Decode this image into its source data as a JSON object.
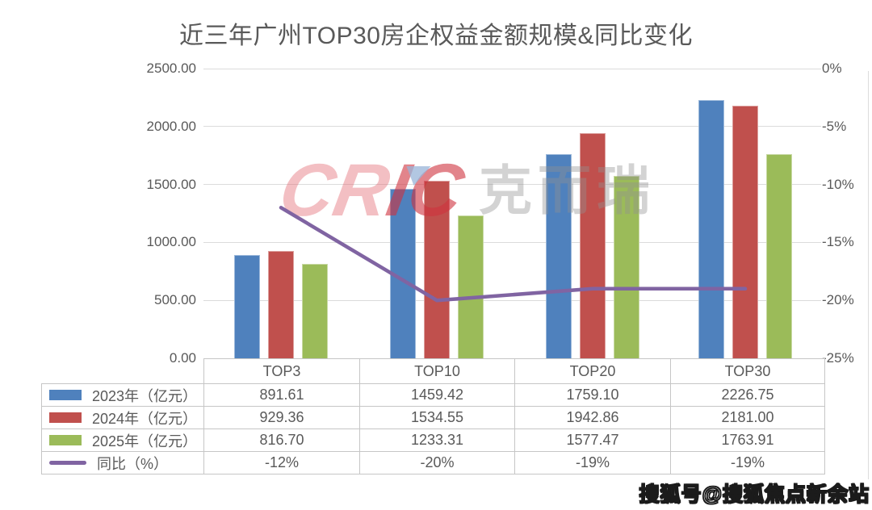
{
  "title": "近三年广州TOP30房企权益金额规模&同比变化",
  "watermark": {
    "logo_latin": "CRIC",
    "logo_cjk": "克而瑞"
  },
  "footer_watermark": "搜狐号@搜狐焦点新余站",
  "colors": {
    "bar_2023": "#4F81BD",
    "bar_2024": "#C0504D",
    "bar_2025": "#9BBB59",
    "line_yoy": "#8064A2",
    "axis_text": "#595959",
    "gridline": "#DBDBDB",
    "table_border": "#C6C6C6"
  },
  "chart_data": {
    "type": "combo-bar-line",
    "title": "近三年广州TOP30房企权益金额规模&同比变化",
    "categories": [
      "TOP3",
      "TOP10",
      "TOP20",
      "TOP30"
    ],
    "series": [
      {
        "name": "2023年（亿元）",
        "type": "bar",
        "color": "#4F81BD",
        "axis": "left",
        "values": [
          891.61,
          1459.42,
          1759.1,
          2226.75
        ]
      },
      {
        "name": "2024年（亿元）",
        "type": "bar",
        "color": "#C0504D",
        "axis": "left",
        "values": [
          929.36,
          1534.55,
          1942.86,
          2181.0
        ]
      },
      {
        "name": "2025年（亿元）",
        "type": "bar",
        "color": "#9BBB59",
        "axis": "left",
        "values": [
          816.7,
          1233.31,
          1577.47,
          1763.91
        ]
      },
      {
        "name": "同比（%）",
        "type": "line",
        "color": "#8064A2",
        "axis": "right",
        "values": [
          -12,
          -20,
          -19,
          -19
        ]
      }
    ],
    "left_axis": {
      "min": 0,
      "max": 2500,
      "ticks": [
        "2500.00",
        "2000.00",
        "1500.00",
        "1000.00",
        "500.00",
        "0.00"
      ]
    },
    "right_axis": {
      "min": -25,
      "max": 0,
      "ticks": [
        "0%",
        "-5%",
        "-10%",
        "-15%",
        "-20%",
        "-25%"
      ]
    },
    "grid": true,
    "legend_position": "table-left",
    "table": {
      "row_labels": [
        "2023年（亿元）",
        "2024年（亿元）",
        "2025年（亿元）",
        "同比（%）"
      ],
      "rows": [
        [
          "891.61",
          "1459.42",
          "1759.10",
          "2226.75"
        ],
        [
          "929.36",
          "1534.55",
          "1942.86",
          "2181.00"
        ],
        [
          "816.70",
          "1233.31",
          "1577.47",
          "1763.91"
        ],
        [
          "-12%",
          "-20%",
          "-19%",
          "-19%"
        ]
      ]
    }
  }
}
